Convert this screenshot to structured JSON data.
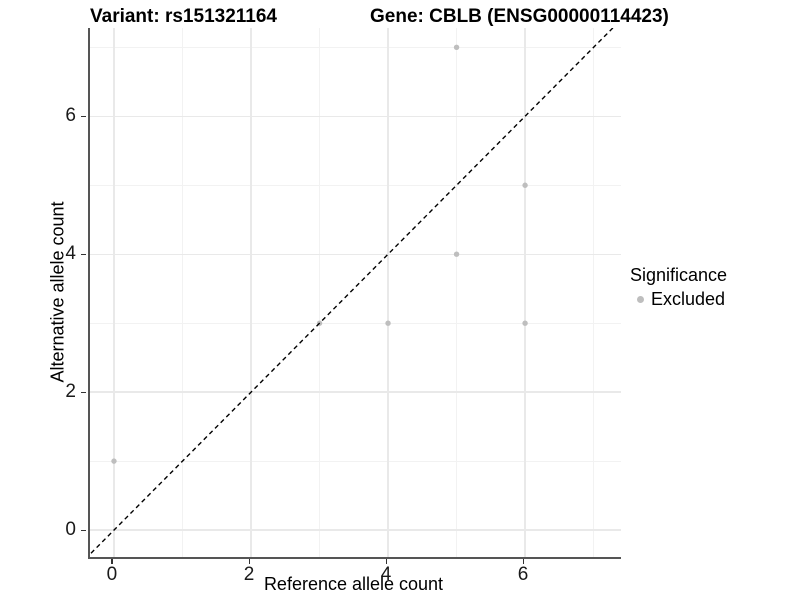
{
  "titles": {
    "variant": "Variant: rs151321164",
    "gene": "Gene: CBLB (ENSG00000114423)"
  },
  "axes": {
    "x_label": "Reference allele count",
    "y_label": "Alternative allele count"
  },
  "legend": {
    "title": "Significance",
    "items": [
      {
        "label": "Excluded",
        "color": "#bebebe"
      }
    ]
  },
  "chart_data": {
    "type": "scatter",
    "title": "Variant: rs151321164 | Gene: CBLB (ENSG00000114423)",
    "xlabel": "Reference allele count",
    "ylabel": "Alternative allele count",
    "series": [
      {
        "name": "Excluded",
        "color": "#bebebe",
        "points": [
          {
            "x": 0,
            "y": 1
          },
          {
            "x": 3,
            "y": 3
          },
          {
            "x": 4,
            "y": 3
          },
          {
            "x": 5,
            "y": 4
          },
          {
            "x": 5,
            "y": 7
          },
          {
            "x": 6,
            "y": 3
          },
          {
            "x": 6,
            "y": 5
          }
        ]
      }
    ],
    "identity_line": {
      "equation": "y = x",
      "style": "dashed",
      "color": "#000000"
    },
    "xlim": [
      -0.35,
      7.4
    ],
    "ylim": [
      -0.39,
      7.28
    ],
    "x_major_ticks": [
      0,
      2,
      4,
      6
    ],
    "y_major_ticks": [
      0,
      2,
      4,
      6
    ],
    "x_minor_gridlines": [
      1,
      3,
      5,
      7
    ],
    "y_minor_gridlines": [
      1,
      3,
      5,
      7
    ],
    "grid": true,
    "legend_position": "right",
    "point_radius_px": 2.7
  }
}
